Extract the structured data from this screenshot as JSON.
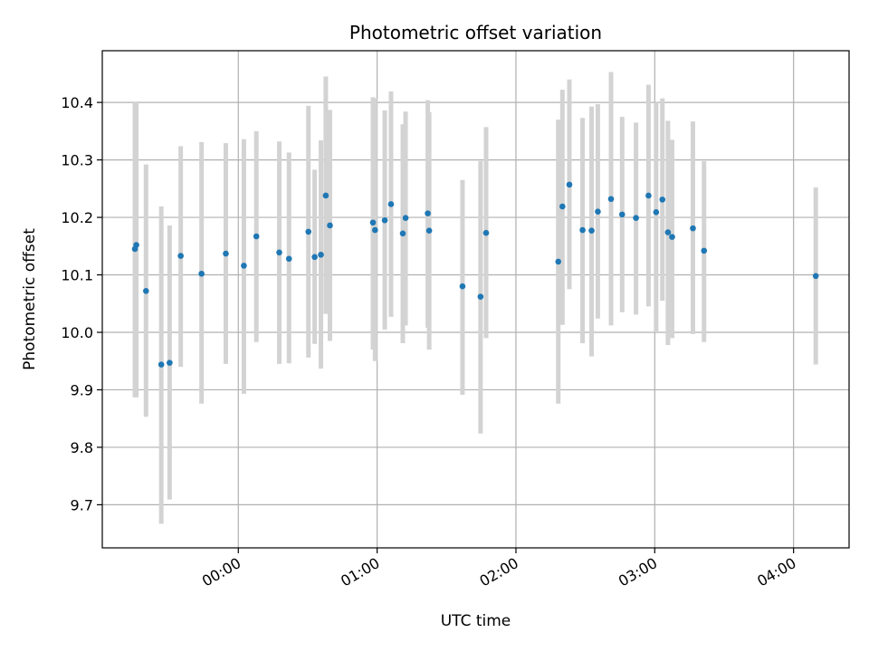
{
  "chart_data": {
    "type": "scatter",
    "title": "Photometric offset variation",
    "xlabel": "UTC time",
    "ylabel": "Photometric offset",
    "x_unit": "hours",
    "xlim": [
      -0.98,
      4.4
    ],
    "ylim": [
      9.625,
      10.49
    ],
    "x_ticks": [
      {
        "value": 0,
        "label": "00:00"
      },
      {
        "value": 1,
        "label": "01:00"
      },
      {
        "value": 2,
        "label": "02:00"
      },
      {
        "value": 3,
        "label": "03:00"
      },
      {
        "value": 4,
        "label": "04:00"
      }
    ],
    "y_ticks": [
      {
        "value": 9.7,
        "label": "9.7"
      },
      {
        "value": 9.8,
        "label": "9.8"
      },
      {
        "value": 9.9,
        "label": "9.9"
      },
      {
        "value": 10.0,
        "label": "10.0"
      },
      {
        "value": 10.1,
        "label": "10.1"
      },
      {
        "value": 10.2,
        "label": "10.2"
      },
      {
        "value": 10.3,
        "label": "10.3"
      },
      {
        "value": 10.4,
        "label": "10.4"
      }
    ],
    "grid": true,
    "marker_color": "#1f77b4",
    "errorbar_color": "#d3d3d3",
    "series": [
      {
        "x": [
          -0.745,
          -0.735,
          -0.665,
          -0.555,
          -0.495,
          -0.415,
          -0.265,
          -0.09,
          0.04,
          0.13,
          0.295,
          0.365,
          0.505,
          0.55,
          0.595,
          0.63,
          0.66,
          0.97,
          0.985,
          1.055,
          1.1,
          1.185,
          1.205,
          1.365,
          1.375,
          1.615,
          1.745,
          1.785,
          2.305,
          2.335,
          2.385,
          2.48,
          2.545,
          2.59,
          2.685,
          2.765,
          2.865,
          2.955,
          3.01,
          3.055,
          3.095,
          3.125,
          3.275,
          3.355,
          4.16
        ],
        "y": [
          10.145,
          10.152,
          10.072,
          9.944,
          9.947,
          10.133,
          10.102,
          10.137,
          10.116,
          10.167,
          10.139,
          10.128,
          10.175,
          10.131,
          10.135,
          10.238,
          10.186,
          10.191,
          10.178,
          10.195,
          10.223,
          10.172,
          10.199,
          10.207,
          10.177,
          10.08,
          10.062,
          10.173,
          10.123,
          10.219,
          10.257,
          10.178,
          10.177,
          10.21,
          10.232,
          10.205,
          10.199,
          10.238,
          10.209,
          10.231,
          10.174,
          10.166,
          10.181,
          10.142,
          10.098
        ],
        "yerr_low": [
          9.887,
          9.887,
          9.853,
          9.667,
          9.709,
          9.94,
          9.876,
          9.945,
          9.893,
          9.983,
          9.945,
          9.946,
          9.956,
          9.98,
          9.937,
          10.032,
          9.985,
          9.97,
          9.95,
          10.005,
          10.027,
          9.981,
          10.012,
          10.008,
          9.97,
          9.891,
          9.824,
          9.99,
          9.876,
          10.013,
          10.075,
          9.981,
          9.958,
          10.024,
          10.012,
          10.035,
          10.031,
          10.045,
          10.0,
          10.055,
          9.978,
          9.99,
          9.997,
          9.983,
          9.944
        ],
        "yerr_high": [
          10.4,
          10.4,
          10.292,
          10.219,
          10.186,
          10.324,
          10.331,
          10.329,
          10.336,
          10.35,
          10.332,
          10.313,
          10.394,
          10.283,
          10.334,
          10.445,
          10.387,
          10.409,
          10.407,
          10.386,
          10.419,
          10.362,
          10.384,
          10.404,
          10.383,
          10.265,
          10.298,
          10.357,
          10.37,
          10.422,
          10.44,
          10.373,
          10.393,
          10.397,
          10.453,
          10.375,
          10.365,
          10.431,
          10.4,
          10.407,
          10.368,
          10.335,
          10.367,
          10.298,
          10.252
        ]
      }
    ]
  }
}
